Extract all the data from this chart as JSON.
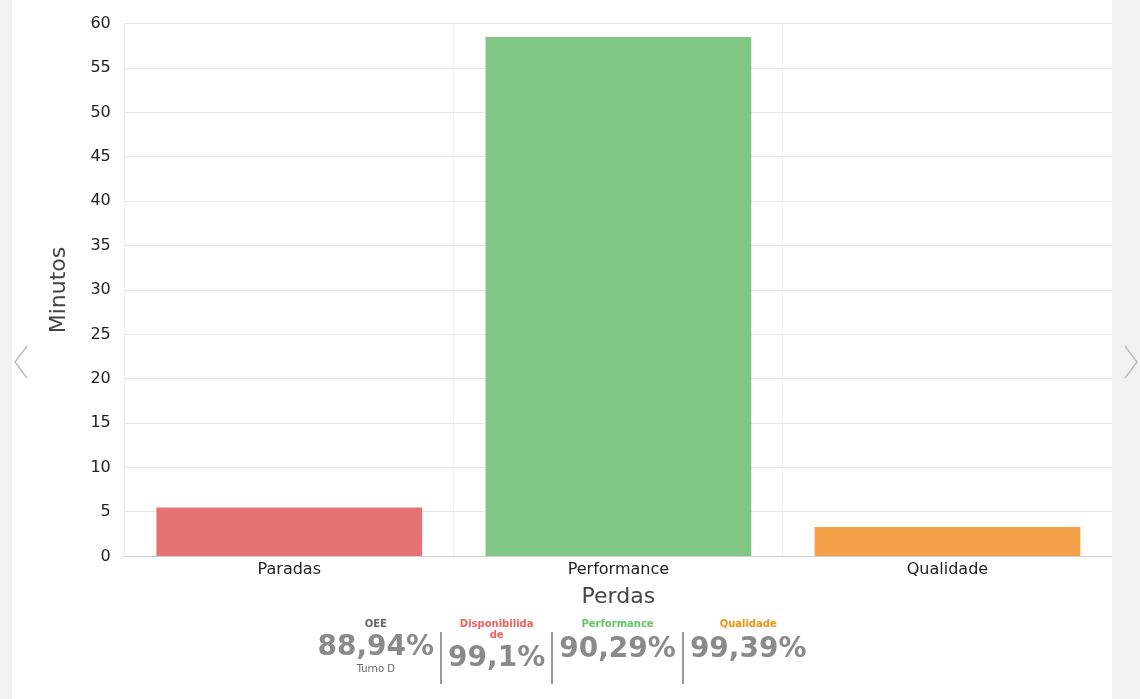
{
  "chart_data": {
    "type": "bar",
    "xlabel": "Perdas",
    "ylabel": "Minutos",
    "categories": [
      "Paradas",
      "Performance",
      "Qualidade"
    ],
    "values": [
      5.5,
      58.5,
      3.3
    ],
    "colors": [
      "#e57373",
      "#81c784",
      "#f4a14a"
    ],
    "ylim": [
      0,
      60
    ],
    "yticks": [
      0,
      5,
      10,
      15,
      20,
      25,
      30,
      35,
      40,
      45,
      50,
      55,
      60
    ],
    "grid": true,
    "legend": false,
    "annotations": [
      "OEE",
      "88,94%",
      "Turno D",
      "Disponibilidade",
      "99,1%",
      "Performance",
      "90,29%",
      "Qualidade",
      "99,39%"
    ]
  }
}
